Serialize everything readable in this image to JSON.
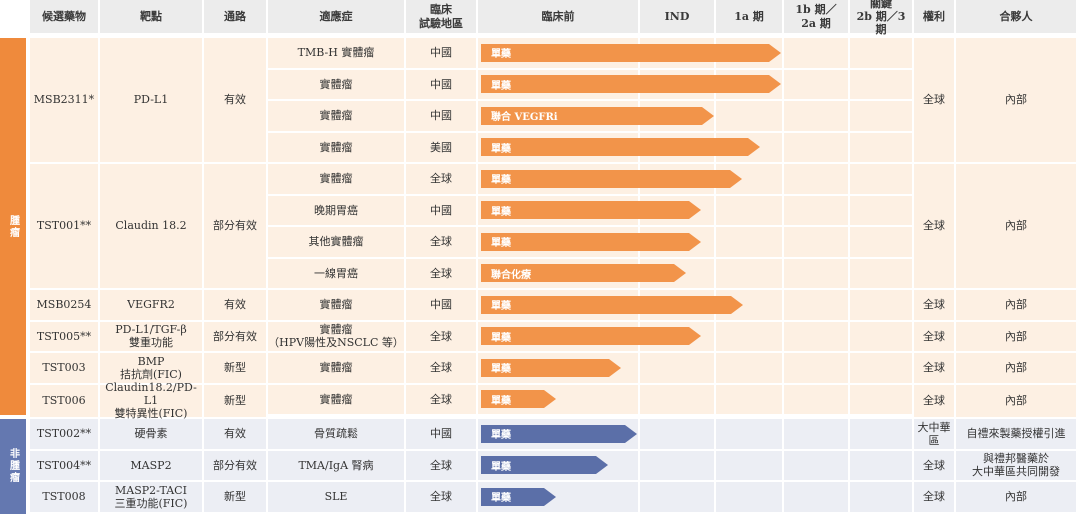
{
  "header": {
    "candidate": "候選藥物",
    "target": "靶點",
    "pathway": "通路",
    "indication": "適應症",
    "region": "臨床\n試驗地區",
    "preclinical": "臨床前",
    "ind": "IND",
    "phase1a": "1a 期",
    "phase1b2a": "1b 期／\n2a 期",
    "pivotal": "關鍵\n2b 期／3 期",
    "rights": "權利",
    "partner": "合夥人"
  },
  "section_labels": {
    "oncology": "腫瘤",
    "non_oncology": "非腫瘤"
  },
  "groups": [
    {
      "candidate": "MSB2311*",
      "target": "PD-L1",
      "pathway": "有效",
      "rights": "全球",
      "partner": "內部"
    },
    {
      "candidate": "TST001**",
      "target": "Claudin 18.2",
      "pathway": "部分有效",
      "rights": "全球",
      "partner": "內部"
    },
    {
      "candidate": "MSB0254",
      "target": "VEGFR2",
      "pathway": "有效",
      "rights": "全球",
      "partner": "內部"
    },
    {
      "candidate": "TST005**",
      "target": "PD-L1/TGF-β\n雙重功能",
      "pathway": "部分有效",
      "rights": "全球",
      "partner": "內部"
    },
    {
      "candidate": "TST003",
      "target": "BMP\n拮抗劑(FIC)",
      "pathway": "新型",
      "rights": "全球",
      "partner": "內部"
    },
    {
      "candidate": "TST006",
      "target": "Claudin18.2/PD-L1\n雙特異性(FIC)",
      "pathway": "新型",
      "rights": "全球",
      "partner": "內部"
    },
    {
      "candidate": "TST002**",
      "target": "硬骨素",
      "pathway": "有效",
      "rights": "大中華區",
      "partner": "自禮來製藥授權引進"
    },
    {
      "candidate": "TST004**",
      "target": "MASP2",
      "pathway": "部分有效",
      "rights": "全球",
      "partner": "與禮邦醫藥於\n大中華區共同開發"
    },
    {
      "candidate": "TST008",
      "target": "MASP2-TACI\n三重功能(FIC)",
      "pathway": "新型",
      "rights": "全球",
      "partner": "內部"
    }
  ],
  "rows": [
    {
      "indication": "TMB-H 實體瘤",
      "region": "中國",
      "bar_label": "單藥",
      "progress_stage": 2.95
    },
    {
      "indication": "實體瘤",
      "region": "中國",
      "bar_label": "單藥",
      "progress_stage": 2.95
    },
    {
      "indication": "實體瘤",
      "region": "中國",
      "bar_label": "聯合 VEGFRi",
      "progress_stage": 1.98
    },
    {
      "indication": "實體瘤",
      "region": "美國",
      "bar_label": "單藥",
      "progress_stage": 2.65
    },
    {
      "indication": "實體瘤",
      "region": "全球",
      "bar_label": "單藥",
      "progress_stage": 2.38
    },
    {
      "indication": "晚期胃癌",
      "region": "中國",
      "bar_label": "單藥",
      "progress_stage": 1.8
    },
    {
      "indication": "其他實體瘤",
      "region": "全球",
      "bar_label": "單藥",
      "progress_stage": 1.8
    },
    {
      "indication": "一線胃癌",
      "region": "全球",
      "bar_label": "聯合化療",
      "progress_stage": 1.6
    },
    {
      "indication": "實體瘤",
      "region": "中國",
      "bar_label": "單藥",
      "progress_stage": 2.4
    },
    {
      "indication": "實體瘤\n（HPV陽性及NSCLC 等）",
      "region": "全球",
      "bar_label": "單藥",
      "progress_stage": 1.8
    },
    {
      "indication": "實體瘤",
      "region": "全球",
      "bar_label": "單藥",
      "progress_stage": 0.88
    },
    {
      "indication": "實體瘤",
      "region": "全球",
      "bar_label": "單藥",
      "progress_stage": 0.48
    },
    {
      "indication": "骨質疏鬆",
      "region": "中國",
      "bar_label": "單藥",
      "progress_stage": 0.98
    },
    {
      "indication": "TMA/IgA 腎病",
      "region": "全球",
      "bar_label": "單藥",
      "progress_stage": 0.8
    },
    {
      "indication": "SLE",
      "region": "全球",
      "bar_label": "單藥",
      "progress_stage": 0.48
    }
  ],
  "colors": {
    "oncology_accent": "#f2944a",
    "non_oncology_accent": "#5b6fa8",
    "oncology_band": "#ef8a3c",
    "non_oncology_band": "#6478b0"
  }
}
